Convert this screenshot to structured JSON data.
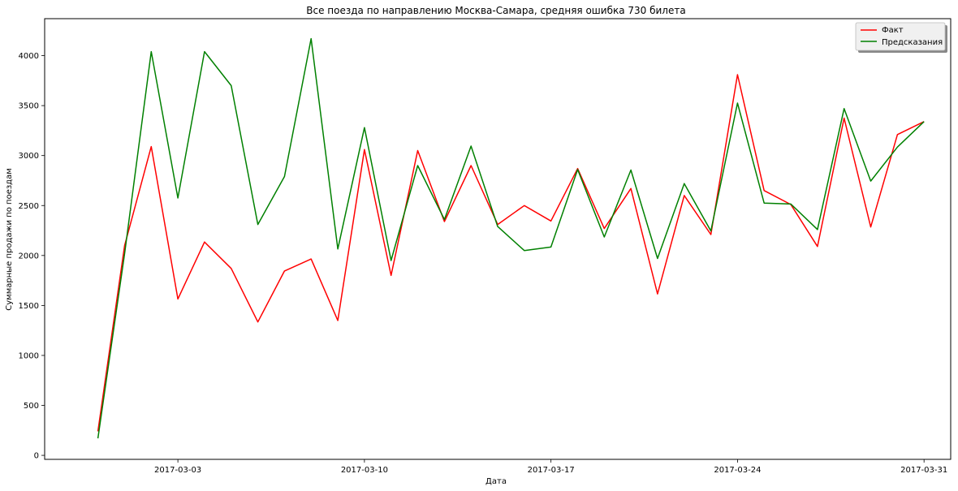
{
  "chart_data": {
    "type": "line",
    "title": "Все поезда по направлению Москва-Самара, средняя ошибка 730 билета",
    "xlabel": "Дата",
    "ylabel": "Суммарные продажи по поездам",
    "x": [
      "2017-02-28",
      "2017-03-01",
      "2017-03-02",
      "2017-03-03",
      "2017-03-04",
      "2017-03-05",
      "2017-03-06",
      "2017-03-07",
      "2017-03-08",
      "2017-03-09",
      "2017-03-10",
      "2017-03-11",
      "2017-03-12",
      "2017-03-13",
      "2017-03-14",
      "2017-03-15",
      "2017-03-16",
      "2017-03-17",
      "2017-03-18",
      "2017-03-19",
      "2017-03-20",
      "2017-03-21",
      "2017-03-22",
      "2017-03-23",
      "2017-03-24",
      "2017-03-25",
      "2017-03-26",
      "2017-03-27",
      "2017-03-28",
      "2017-03-29",
      "2017-03-30",
      "2017-03-31"
    ],
    "x_ticks": [
      "2017-03-03",
      "2017-03-10",
      "2017-03-17",
      "2017-03-24",
      "2017-03-31"
    ],
    "y_ticks": [
      0,
      500,
      1000,
      1500,
      2000,
      2500,
      3000,
      3500,
      4000
    ],
    "xlim": [
      "2017-02-26",
      "2017-04-01"
    ],
    "ylim": [
      -40,
      4370
    ],
    "grid": false,
    "legend_position": "top-right",
    "series": [
      {
        "name": "Факт",
        "color": "#ff0000",
        "values": [
          240,
          2100,
          3090,
          1565,
          2135,
          1870,
          1335,
          1845,
          1965,
          1350,
          3060,
          1800,
          3050,
          2340,
          2900,
          2310,
          2500,
          2345,
          2870,
          2270,
          2670,
          1615,
          2600,
          2210,
          3810,
          2650,
          2510,
          2090,
          3375,
          2285,
          3210,
          3340
        ]
      },
      {
        "name": "Предсказания",
        "color": "#008000",
        "values": [
          170,
          2020,
          4040,
          2575,
          4040,
          3700,
          2310,
          2790,
          4170,
          2065,
          3280,
          1950,
          2900,
          2360,
          3095,
          2290,
          2050,
          2085,
          2860,
          2185,
          2855,
          1970,
          2720,
          2245,
          3525,
          2525,
          2515,
          2260,
          3470,
          2745,
          3085,
          3340
        ]
      }
    ]
  }
}
